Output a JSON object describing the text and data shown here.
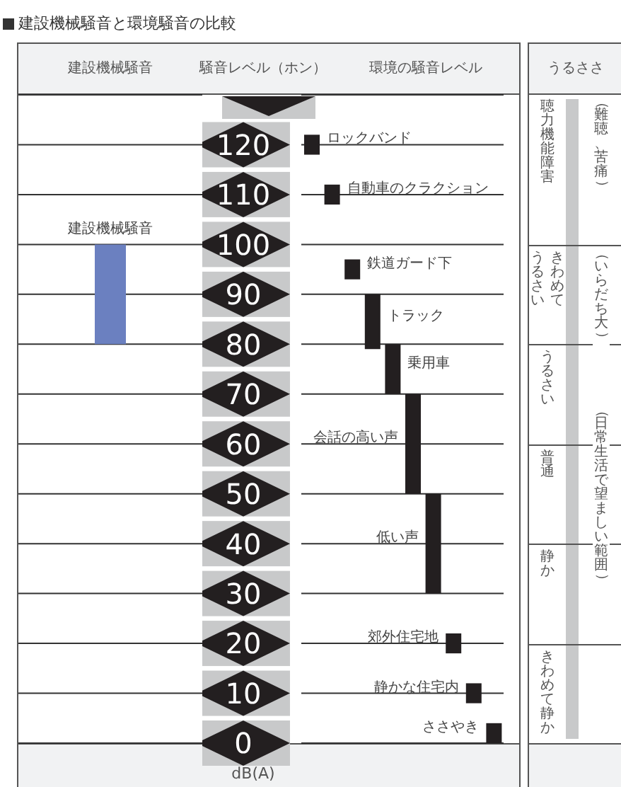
{
  "chart_data": [
    {
      "type": "bar",
      "title": "建設機械騒音と環境騒音の比較",
      "subtitle": "建設機械騒音",
      "categories": [
        null
      ],
      "series": [
        {
          "name": "建設機械騒音",
          "color": "#6b80c0",
          "values": [
            20
          ],
          "base": [
            80
          ]
        }
      ],
      "ylim": [
        0,
        130
      ],
      "yticks": [
        0,
        10,
        20,
        30,
        40,
        50,
        60,
        70,
        80,
        90,
        100,
        110,
        120
      ],
      "grid": "y",
      "tick_labels": false
    },
    {
      "type": "bar",
      "title": "環境の騒音レベル",
      "ylabel": "騒音レベル（ホン）",
      "annotations": [
        "dB(A)"
      ],
      "categories": [
        null,
        null,
        null,
        null,
        null,
        null,
        null,
        null,
        null,
        null
      ],
      "series": [
        {
          "name": "ロックバンド",
          "color": "#231f20",
          "values": [
            4,
            null,
            null,
            null,
            null,
            null,
            null,
            null,
            null,
            null
          ],
          "base": [
            118,
            null,
            null,
            null,
            null,
            null,
            null,
            null,
            null,
            null
          ]
        },
        {
          "name": "自動車のクラクション",
          "color": "#231f20",
          "values": [
            null,
            4,
            null,
            null,
            null,
            null,
            null,
            null,
            null,
            null
          ],
          "base": [
            null,
            108,
            null,
            null,
            null,
            null,
            null,
            null,
            null,
            null
          ]
        },
        {
          "name": "鉄道ガード下",
          "color": "#231f20",
          "values": [
            null,
            null,
            4,
            null,
            null,
            null,
            null,
            null,
            null,
            null
          ],
          "base": [
            null,
            null,
            93,
            null,
            null,
            null,
            null,
            null,
            null,
            null
          ]
        },
        {
          "name": "トラック",
          "color": "#231f20",
          "values": [
            null,
            null,
            null,
            11,
            null,
            null,
            null,
            null,
            null,
            null
          ],
          "base": [
            null,
            null,
            null,
            79,
            null,
            null,
            null,
            null,
            null,
            null
          ]
        },
        {
          "name": "乗用車",
          "color": "#231f20",
          "values": [
            null,
            null,
            null,
            null,
            10,
            null,
            null,
            null,
            null,
            null
          ],
          "base": [
            null,
            null,
            null,
            null,
            70,
            null,
            null,
            null,
            null,
            null
          ]
        },
        {
          "name": "会話の高い声",
          "color": "#231f20",
          "values": [
            null,
            null,
            null,
            null,
            null,
            20,
            null,
            null,
            null,
            null
          ],
          "base": [
            null,
            null,
            null,
            null,
            null,
            50,
            null,
            null,
            null,
            null
          ]
        },
        {
          "name": "低い声",
          "color": "#231f20",
          "values": [
            null,
            null,
            null,
            null,
            null,
            null,
            20,
            null,
            null,
            null
          ],
          "base": [
            null,
            null,
            null,
            null,
            null,
            null,
            30,
            null,
            null,
            null
          ]
        },
        {
          "name": "郊外住宅地",
          "color": "#231f20",
          "values": [
            null,
            null,
            null,
            null,
            null,
            null,
            null,
            4,
            null,
            null
          ],
          "base": [
            null,
            null,
            null,
            null,
            null,
            null,
            null,
            18,
            null,
            null
          ]
        },
        {
          "name": "静かな住宅内",
          "color": "#231f20",
          "values": [
            null,
            null,
            null,
            null,
            null,
            null,
            null,
            null,
            4,
            null
          ],
          "base": [
            null,
            null,
            null,
            null,
            null,
            null,
            null,
            null,
            8,
            null
          ]
        },
        {
          "name": "ささやき",
          "color": "#231f20",
          "values": [
            null,
            null,
            null,
            null,
            null,
            null,
            null,
            null,
            null,
            4
          ],
          "base": [
            null,
            null,
            null,
            null,
            null,
            null,
            null,
            null,
            null,
            0
          ]
        }
      ],
      "ylim": [
        0,
        130
      ],
      "yticks": [
        0,
        10,
        20,
        30,
        40,
        50,
        60,
        70,
        80,
        90,
        100,
        110,
        120
      ],
      "grid": "y",
      "tick_labels": "y"
    },
    {
      "type": "other",
      "title": "うるささ",
      "y_categories": [
        "聴力機能障害",
        "きわめてうるさい",
        "うるさい",
        "普通",
        "静か",
        "きわめて静か"
      ],
      "y2_categories": [
        "（難聴、苦痛）",
        "（いらだち大）",
        null,
        "（日常生活で望ましい範囲）",
        null,
        null
      ]
    }
  ]
}
